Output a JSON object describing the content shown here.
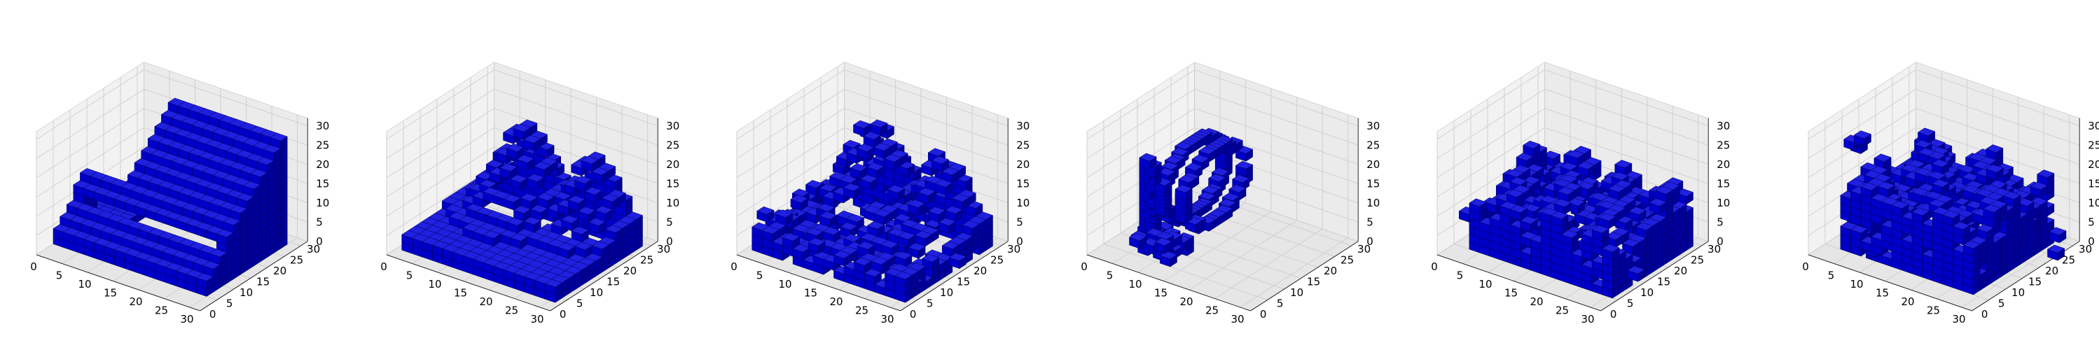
{
  "figure": {
    "panel_count": 6,
    "axis_ticks": {
      "x": [
        "0",
        "5",
        "10",
        "15",
        "20",
        "25",
        "30"
      ],
      "y": [
        "0",
        "5",
        "10",
        "15",
        "20",
        "25",
        "30"
      ],
      "z": [
        "0",
        "5",
        "10",
        "15",
        "20",
        "25",
        "30"
      ]
    }
  },
  "colors": {
    "voxel_top": "#2020e0",
    "voxel_front": "#0000c8",
    "voxel_side": "#00009a",
    "voxel_edge": "#000055",
    "pane_left": "#f2f2f2",
    "pane_back": "#ebebeb",
    "pane_floor": "#e6e6e6",
    "grid": "#d0d0d0",
    "axis_line": "#000000"
  },
  "chart_data": [
    {
      "type": "voxel-3d",
      "shape": "solid-ramp",
      "xlim": [
        0,
        32
      ],
      "ylim": [
        0,
        32
      ],
      "zlim": [
        0,
        32
      ],
      "xticks": [
        0,
        5,
        10,
        15,
        20,
        25,
        30
      ],
      "yticks": [
        0,
        5,
        10,
        15,
        20,
        25,
        30
      ],
      "zticks": [
        0,
        5,
        10,
        15,
        20,
        25,
        30
      ],
      "xlabel": "",
      "ylabel": "",
      "zlabel": "",
      "grid": true,
      "extent": {
        "x": [
          0,
          30
        ],
        "y": [
          5,
          29
        ],
        "z": [
          0,
          28
        ]
      },
      "color": "#0000ff"
    },
    {
      "type": "voxel-3d",
      "shape": "solid-slab-two-peaks",
      "xlim": [
        0,
        32
      ],
      "ylim": [
        0,
        32
      ],
      "zlim": [
        0,
        32
      ],
      "xticks": [
        0,
        5,
        10,
        15,
        20,
        25,
        30
      ],
      "yticks": [
        0,
        5,
        10,
        15,
        20,
        25,
        30
      ],
      "zticks": [
        0,
        5,
        10,
        15,
        20,
        25,
        30
      ],
      "xlabel": "",
      "ylabel": "",
      "zlabel": "",
      "grid": true,
      "extent": {
        "x": [
          1,
          31
        ],
        "y": [
          3,
          29
        ],
        "z": [
          0,
          24
        ]
      },
      "color": "#0000ff"
    },
    {
      "type": "voxel-3d",
      "shape": "noisy-slab-two-peaks",
      "xlim": [
        0,
        32
      ],
      "ylim": [
        0,
        32
      ],
      "zlim": [
        0,
        32
      ],
      "xticks": [
        0,
        5,
        10,
        15,
        20,
        25,
        30
      ],
      "yticks": [
        0,
        5,
        10,
        15,
        20,
        25,
        30
      ],
      "zticks": [
        0,
        5,
        10,
        15,
        20,
        25,
        30
      ],
      "xlabel": "",
      "ylabel": "",
      "zlabel": "",
      "grid": true,
      "extent": {
        "x": [
          1,
          31
        ],
        "y": [
          3,
          29
        ],
        "z": [
          0,
          24
        ]
      },
      "color": "#0000ff"
    },
    {
      "type": "voxel-3d",
      "shape": "sparse-ring",
      "xlim": [
        0,
        32
      ],
      "ylim": [
        0,
        32
      ],
      "zlim": [
        0,
        32
      ],
      "xticks": [
        0,
        5,
        10,
        15,
        20,
        25,
        30
      ],
      "yticks": [
        0,
        5,
        10,
        15,
        20,
        25,
        30
      ],
      "zticks": [
        0,
        5,
        10,
        15,
        20,
        25,
        30
      ],
      "xlabel": "",
      "ylabel": "",
      "zlabel": "",
      "grid": true,
      "extent": {
        "x": [
          4,
          16
        ],
        "y": [
          6,
          28
        ],
        "z": [
          0,
          24
        ]
      },
      "color": "#0000ff"
    },
    {
      "type": "voxel-3d",
      "shape": "noisy-block",
      "xlim": [
        0,
        32
      ],
      "ylim": [
        0,
        32
      ],
      "zlim": [
        0,
        32
      ],
      "xticks": [
        0,
        5,
        10,
        15,
        20,
        25,
        30
      ],
      "yticks": [
        0,
        5,
        10,
        15,
        20,
        25,
        30
      ],
      "zticks": [
        0,
        5,
        10,
        15,
        20,
        25,
        30
      ],
      "xlabel": "",
      "ylabel": "",
      "zlabel": "",
      "grid": true,
      "extent": {
        "x": [
          3,
          30
        ],
        "y": [
          5,
          28
        ],
        "z": [
          0,
          18
        ]
      },
      "color": "#0000ff"
    },
    {
      "type": "voxel-3d",
      "shape": "noisy-tall-block",
      "xlim": [
        0,
        32
      ],
      "ylim": [
        0,
        32
      ],
      "zlim": [
        0,
        32
      ],
      "xticks": [
        0,
        5,
        10,
        15,
        20,
        25,
        30
      ],
      "yticks": [
        0,
        5,
        10,
        15,
        20,
        25,
        30
      ],
      "zticks": [
        0,
        5,
        10,
        15,
        20,
        25,
        30
      ],
      "xlabel": "",
      "ylabel": "",
      "zlabel": "",
      "grid": true,
      "extent": {
        "x": [
          3,
          29
        ],
        "y": [
          5,
          29
        ],
        "z": [
          0,
          28
        ]
      },
      "color": "#0000ff"
    }
  ]
}
